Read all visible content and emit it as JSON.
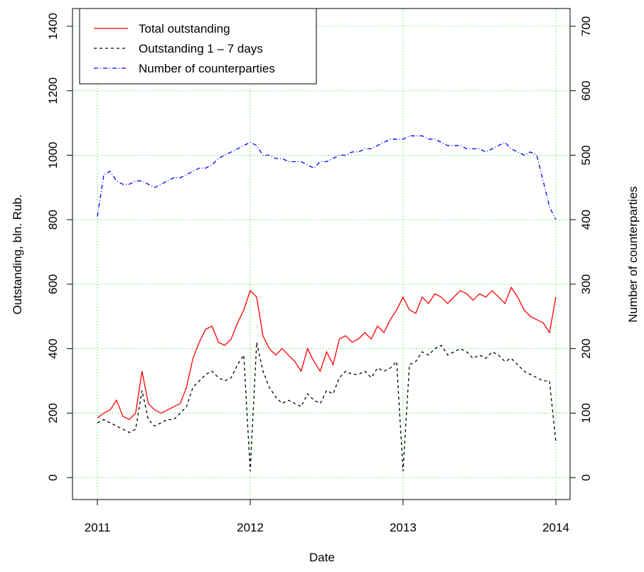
{
  "chart_data": {
    "type": "line",
    "xlabel": "Date",
    "ylabel": "Outstanding, bln. Rub.",
    "y2label": "Number of counterparties",
    "x": [
      2011,
      2011.042,
      2011.083,
      2011.125,
      2011.167,
      2011.208,
      2011.25,
      2011.292,
      2011.333,
      2011.375,
      2011.417,
      2011.458,
      2011.5,
      2011.542,
      2011.583,
      2011.625,
      2011.667,
      2011.708,
      2011.75,
      2011.792,
      2011.833,
      2011.875,
      2011.917,
      2011.958,
      2012,
      2012.042,
      2012.083,
      2012.125,
      2012.167,
      2012.208,
      2012.25,
      2012.292,
      2012.333,
      2012.375,
      2012.417,
      2012.458,
      2012.5,
      2012.542,
      2012.583,
      2012.625,
      2012.667,
      2012.708,
      2012.75,
      2012.792,
      2012.833,
      2012.875,
      2012.917,
      2012.958,
      2013,
      2013.042,
      2013.083,
      2013.125,
      2013.167,
      2013.208,
      2013.25,
      2013.292,
      2013.333,
      2013.375,
      2013.417,
      2013.458,
      2013.5,
      2013.542,
      2013.583,
      2013.625,
      2013.667,
      2013.708,
      2013.75,
      2013.792,
      2013.833,
      2013.875,
      2013.917,
      2013.958,
      2014
    ],
    "series": [
      {
        "name": "Total outstanding",
        "color": "#ff0000",
        "dash": "none",
        "values": [
          185,
          200,
          210,
          240,
          190,
          180,
          200,
          330,
          230,
          210,
          200,
          210,
          220,
          230,
          280,
          370,
          420,
          460,
          470,
          420,
          410,
          430,
          480,
          520,
          580,
          560,
          440,
          400,
          380,
          400,
          380,
          360,
          330,
          400,
          360,
          330,
          390,
          350,
          430,
          440,
          420,
          430,
          450,
          430,
          470,
          450,
          490,
          520,
          560,
          520,
          510,
          560,
          540,
          570,
          560,
          540,
          560,
          580,
          570,
          550,
          570,
          560,
          580,
          560,
          540,
          590,
          560,
          520,
          500,
          490,
          480,
          450,
          560
        ]
      },
      {
        "name": "Outstanding 1 – 7 days",
        "color": "#000000",
        "dash": "4,4",
        "values": [
          170,
          180,
          170,
          160,
          150,
          140,
          150,
          270,
          180,
          160,
          170,
          180,
          180,
          200,
          220,
          280,
          300,
          320,
          330,
          310,
          300,
          310,
          350,
          380,
          20,
          420,
          330,
          280,
          250,
          230,
          240,
          230,
          220,
          260,
          240,
          230,
          270,
          260,
          310,
          330,
          320,
          320,
          330,
          310,
          340,
          330,
          340,
          360,
          20,
          350,
          360,
          390,
          380,
          400,
          410,
          380,
          390,
          400,
          390,
          370,
          380,
          370,
          390,
          380,
          360,
          370,
          350,
          330,
          320,
          310,
          300,
          300,
          110
        ]
      },
      {
        "name": "Number of counterparties",
        "color": "#0000ff",
        "dash": "6,3,1,3",
        "axis": "y2",
        "values": [
          405,
          470,
          475,
          460,
          455,
          455,
          460,
          460,
          455,
          450,
          455,
          460,
          465,
          465,
          470,
          475,
          480,
          480,
          485,
          495,
          500,
          505,
          510,
          515,
          520,
          515,
          500,
          500,
          495,
          495,
          490,
          490,
          490,
          485,
          480,
          490,
          490,
          495,
          500,
          500,
          505,
          505,
          510,
          510,
          515,
          520,
          525,
          525,
          525,
          530,
          530,
          530,
          525,
          525,
          520,
          515,
          515,
          515,
          510,
          510,
          510,
          505,
          510,
          515,
          520,
          510,
          505,
          500,
          505,
          500,
          460,
          420,
          400
        ]
      }
    ],
    "xlim": [
      2010.837,
      2014.093
    ],
    "xticks": [
      2011,
      2012,
      2013,
      2014
    ],
    "ylim": [
      -68,
      1455
    ],
    "yticks": [
      0,
      200,
      400,
      600,
      800,
      1000,
      1200,
      1400
    ],
    "y2lim": [
      -34,
      727.5
    ],
    "y2ticks": [
      0,
      100,
      200,
      300,
      400,
      500,
      600,
      700
    ],
    "grid": true,
    "grid_color": "#33cc33",
    "legend": "top-left"
  }
}
